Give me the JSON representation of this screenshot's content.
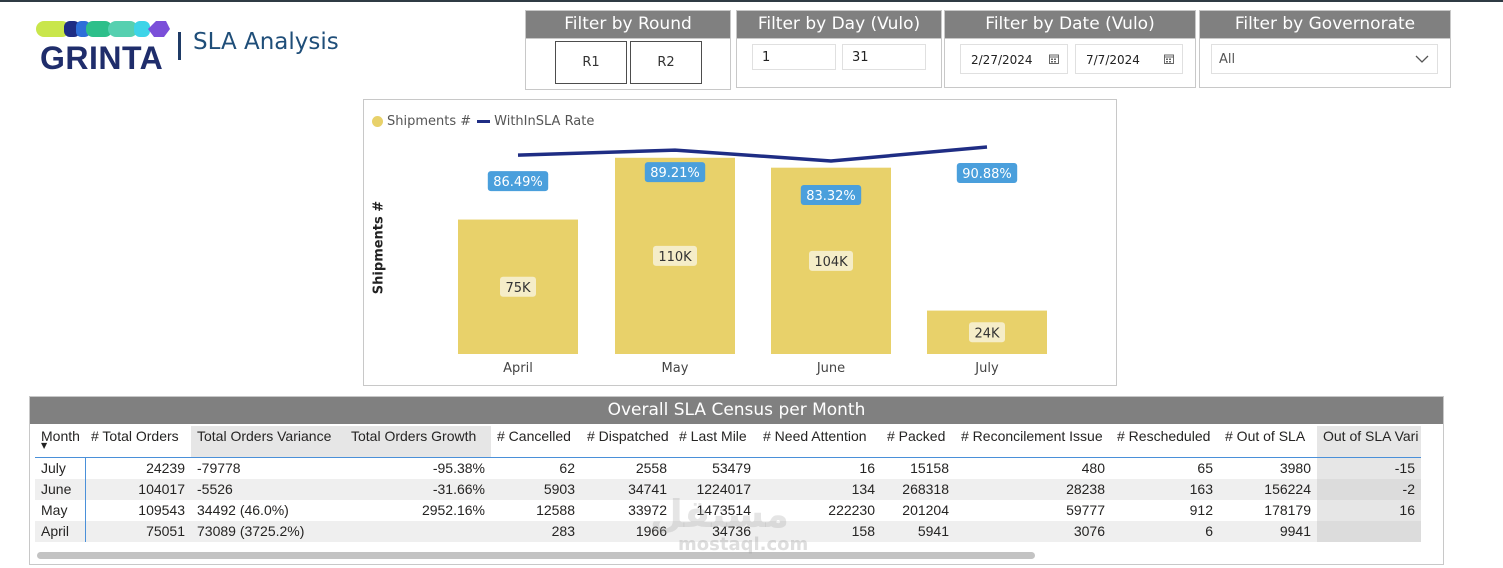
{
  "header": {
    "logo_text": "GRINTA",
    "title": "SLA Analysis"
  },
  "colors": {
    "bar": "#e8d16a",
    "line": "#1f2d84",
    "label_badge": "#4a9fdc",
    "filter_header": "#808080"
  },
  "filters": {
    "round": {
      "title": "Filter by Round",
      "options": [
        "R1",
        "R2"
      ]
    },
    "day": {
      "title": "Filter by Day (Vulo)",
      "from": "1",
      "to": "31"
    },
    "date": {
      "title": "Filter by Date (Vulo)",
      "from": "2/27/2024",
      "to": "7/7/2024"
    },
    "governorate": {
      "title": "Filter by Governorate",
      "selected": "All"
    }
  },
  "chart_data": {
    "type": "bar",
    "title": "",
    "categories": [
      "April",
      "May",
      "June",
      "July"
    ],
    "series": [
      {
        "name": "Shipments #",
        "kind": "bar",
        "values": [
          75051,
          109543,
          104017,
          24239
        ],
        "labels": [
          "75K",
          "110K",
          "104K",
          "24K"
        ]
      },
      {
        "name": "WithInSLA Rate",
        "kind": "line",
        "values": [
          86.49,
          89.21,
          83.32,
          90.88
        ],
        "labels": [
          "86.49%",
          "89.21%",
          "83.32%",
          "90.88%"
        ]
      }
    ],
    "xlabel": "",
    "ylabel": "Shipments #",
    "ylim": [
      0,
      115000
    ],
    "y2lim": [
      0,
      100
    ],
    "legend": [
      "Shipments #",
      "WithInSLA Rate"
    ],
    "legend_position": "top-left"
  },
  "table": {
    "title": "Overall SLA Census per Month",
    "columns": [
      "Month",
      "# Total Orders",
      "Total Orders Variance",
      "Total Orders Growth",
      "# Cancelled",
      "# Dispatched",
      "# Last Mile",
      "# Need Attention",
      "# Packed",
      "# Reconcilement Issue",
      "# Rescheduled",
      "# Out of SLA",
      "Out of SLA Vari"
    ],
    "rows": [
      [
        "July",
        "24239",
        "-79778",
        "-95.38%",
        "62",
        "2558",
        "53479",
        "16",
        "15158",
        "480",
        "65",
        "3980",
        "-15"
      ],
      [
        "June",
        "104017",
        "-5526",
        "-31.66%",
        "5903",
        "34741",
        "1224017",
        "134",
        "268318",
        "28238",
        "163",
        "156224",
        "-2"
      ],
      [
        "May",
        "109543",
        "34492 (46.0%)",
        "2952.16%",
        "12588",
        "33972",
        "1473514",
        "222230",
        "201204",
        "59777",
        "912",
        "178179",
        "16"
      ],
      [
        "April",
        "75051",
        "73089 (3725.2%)",
        "",
        "283",
        "1966",
        "34736",
        "158",
        "5941",
        "3076",
        "6",
        "9941",
        ""
      ]
    ]
  },
  "watermark": {
    "arabic": "مستقل",
    "latin": "mostaql.com"
  }
}
